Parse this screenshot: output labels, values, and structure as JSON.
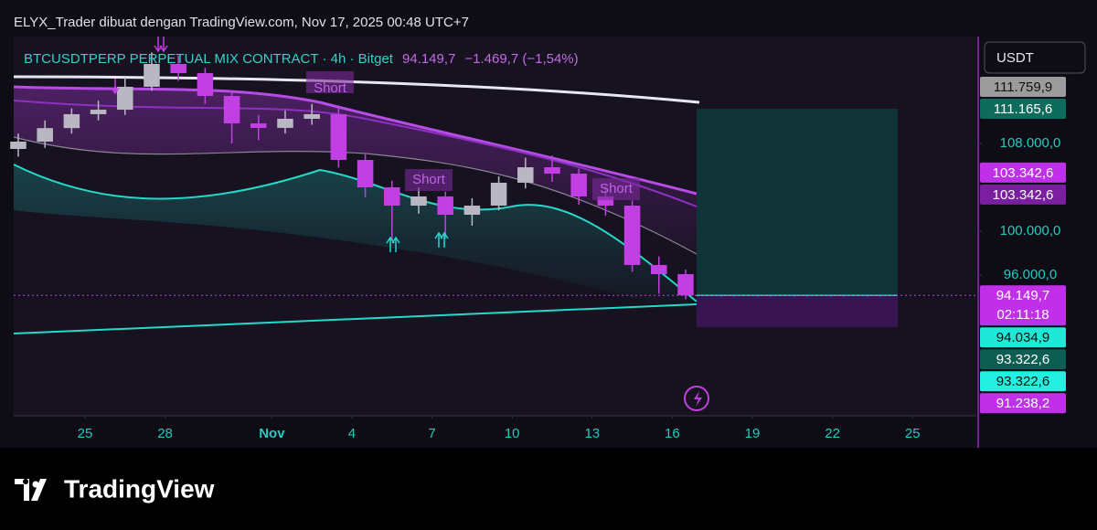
{
  "chart_data": {
    "type": "candlestick",
    "header": "ELYX_Trader dibuat dengan TradingView.com, Nov 17, 2025 00:48 UTC+7",
    "legend": {
      "symbol": "BTCUSDTPERP PERPETUAL MIX CONTRACT · 4h · Bitget",
      "last": "94.149,7",
      "change": "−1.469,7 (−1,54%)"
    },
    "currency": "USDT",
    "annotations": [
      "Short",
      "Short",
      "Short"
    ],
    "footer": "TradingView",
    "x": [
      -2.5,
      -1.5,
      -0.5,
      0.5,
      1.5,
      2.5,
      3.5,
      4.5,
      5.5,
      6.5,
      7.5,
      8.5,
      9.5,
      10.5,
      11.5,
      12.5,
      13.5,
      14.5,
      15.5,
      16.5,
      17.5,
      18.5,
      19.5,
      20.5,
      21.5,
      22.5
    ],
    "open": [
      107500,
      108170,
      109400,
      110670,
      111080,
      113170,
      115250,
      114420,
      112330,
      109830,
      109420,
      110250,
      110670,
      106500,
      104000,
      102330,
      103170,
      101500,
      102330,
      104420,
      105830,
      105250,
      103170,
      102330,
      96920,
      96080
    ],
    "high": [
      108900,
      110100,
      111200,
      111900,
      114000,
      116300,
      116000,
      114900,
      112800,
      110600,
      111000,
      111600,
      111200,
      107000,
      104600,
      104000,
      103600,
      103000,
      105000,
      106700,
      106900,
      105700,
      104100,
      102800,
      97700,
      96500
    ],
    "low": [
      106800,
      107600,
      108900,
      110100,
      110600,
      112800,
      113700,
      111600,
      108000,
      108300,
      108900,
      109700,
      105800,
      103100,
      99200,
      101600,
      99300,
      100500,
      101900,
      103900,
      104500,
      102400,
      101400,
      96300,
      94300,
      93800
    ],
    "close": [
      108170,
      109400,
      110670,
      111080,
      113170,
      115250,
      114420,
      112330,
      109830,
      109420,
      110250,
      110670,
      106500,
      104000,
      102330,
      103170,
      101500,
      102330,
      104420,
      105830,
      105250,
      103170,
      102330,
      96920,
      96080,
      94149.7
    ],
    "up_color": "#b9b7c2",
    "down_color": "#c23fe4",
    "xlim": [
      -2.67,
      33.39
    ],
    "xticks": [
      {
        "value": 0,
        "label": "25"
      },
      {
        "value": 3,
        "label": "28"
      },
      {
        "value": 7,
        "label": "Nov"
      },
      {
        "value": 10,
        "label": "4"
      },
      {
        "value": 13,
        "label": "7"
      },
      {
        "value": 16,
        "label": "10"
      },
      {
        "value": 19,
        "label": "13"
      },
      {
        "value": 22,
        "label": "16"
      },
      {
        "value": 25,
        "label": "19"
      },
      {
        "value": 28,
        "label": "22"
      },
      {
        "value": 31,
        "label": "25"
      }
    ],
    "ylim": [
      83167,
      117750
    ],
    "yticks": [
      {
        "value": 108000,
        "label": "108.000,0"
      },
      {
        "value": 100000,
        "label": "100.000,0"
      },
      {
        "value": 96000,
        "label": "96.000,0"
      }
    ],
    "price_labels": [
      {
        "value": 111759.9,
        "label": "111.759,9",
        "color": "#9c9c9c",
        "text_color": "#111111"
      },
      {
        "value": 111165.6,
        "label": "111.165,6",
        "color": "#0f6b5b",
        "text_color": "#ffffff"
      },
      {
        "value": 103342.6,
        "label": "103.342,6",
        "color": "#c030e8",
        "text_color": "#ffffff"
      },
      {
        "value": 103342.6,
        "label": "103.342,6",
        "color": "#7a1fa0",
        "text_color": "#ffffff"
      },
      {
        "value": 94149.7,
        "label": "94.149,7",
        "sub": "02:11:18",
        "color": "#c030e8",
        "text_color": "#ffffff"
      },
      {
        "value": 94034.9,
        "label": "94.034,9",
        "color": "#1de9d6",
        "text_color": "#111111"
      },
      {
        "value": 93322.6,
        "label": "93.322,6",
        "color": "#0d5e52",
        "text_color": "#ffffff"
      },
      {
        "value": 93322.6,
        "label": "93.322,6",
        "color": "#22f0e0",
        "text_color": "#111111"
      },
      {
        "value": 91238.2,
        "label": "91.238,2",
        "color": "#c030e8",
        "text_color": "#ffffff"
      }
    ]
  }
}
